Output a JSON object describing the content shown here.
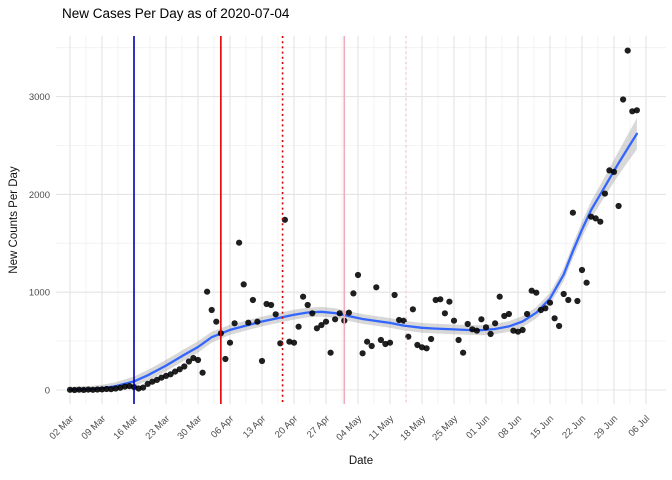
{
  "chart_data": {
    "type": "scatter",
    "title": "New Cases Per Day as of 2020-07-04",
    "xlabel": "Date",
    "ylabel": "New Counts Per Day",
    "x_tick_labels": [
      "02 Mar",
      "09 Mar",
      "16 Mar",
      "23 Mar",
      "30 Mar",
      "06 Apr",
      "13 Apr",
      "20 Apr",
      "27 Apr",
      "04 May",
      "11 May",
      "18 May",
      "25 May",
      "01 Jun",
      "08 Jun",
      "15 Jun",
      "22 Jun",
      "29 Jun",
      "06 Jul"
    ],
    "y_tick_labels": [
      "0",
      "1000",
      "2000",
      "3000"
    ],
    "y_ticks": [
      0,
      1000,
      2000,
      3000
    ],
    "y_minor_ticks": [
      500,
      1500,
      2500,
      3500
    ],
    "ylim": [
      0,
      3620
    ],
    "grid": "on",
    "legend": "none",
    "start_date": "2020-03-02",
    "end_date": "2020-07-04",
    "points": {
      "start_date": "2020-03-02",
      "values": [
        2,
        0,
        3,
        1,
        4,
        2,
        5,
        6,
        10,
        8,
        15,
        22,
        35,
        40,
        30,
        15,
        25,
        62,
        85,
        103,
        126,
        144,
        161,
        188,
        212,
        240,
        291,
        326,
        307,
        177,
        1005,
        818,
        698,
        580,
        317,
        484,
        682,
        1506,
        1080,
        688,
        920,
        698,
        297,
        879,
        869,
        774,
        477,
        1740,
        494,
        484,
        647,
        954,
        869,
        784,
        631,
        664,
        698,
        381,
        723,
        784,
        709,
        790,
        988,
        1176,
        375,
        494,
        450,
        1050,
        511,
        470,
        484,
        971,
        716,
        709,
        545,
        825,
        460,
        437,
        426,
        521,
        920,
        927,
        784,
        903,
        709,
        511,
        381,
        675,
        621,
        606,
        723,
        641,
        573,
        682,
        954,
        757,
        777,
        606,
        596,
        613,
        777,
        1015,
        995,
        818,
        835,
        893,
        733,
        654,
        982,
        920,
        1813,
        910,
        1227,
        1097,
        1772,
        1755,
        1721,
        2008,
        2245,
        2230,
        1881,
        2970,
        3470,
        2850,
        2860
      ]
    },
    "smooth": {
      "comment_type": "loess smooth with confidence ribbon, entries are [day_index, value, half_band]",
      "knots": [
        [
          0,
          3,
          30
        ],
        [
          4,
          8,
          32
        ],
        [
          7,
          18,
          35
        ],
        [
          10,
          40,
          40
        ],
        [
          14,
          88,
          50
        ],
        [
          17,
          150,
          55
        ],
        [
          21,
          250,
          58
        ],
        [
          25,
          360,
          58
        ],
        [
          28,
          440,
          58
        ],
        [
          31,
          540,
          55
        ],
        [
          35,
          615,
          52
        ],
        [
          39,
          665,
          50
        ],
        [
          42,
          700,
          50
        ],
        [
          46,
          740,
          50
        ],
        [
          49,
          770,
          50
        ],
        [
          52,
          792,
          50
        ],
        [
          55,
          800,
          50
        ],
        [
          58,
          786,
          50
        ],
        [
          61,
          756,
          50
        ],
        [
          64,
          726,
          50
        ],
        [
          67,
          706,
          50
        ],
        [
          70,
          686,
          50
        ],
        [
          73,
          658,
          50
        ],
        [
          77,
          636,
          50
        ],
        [
          80,
          628,
          50
        ],
        [
          84,
          620,
          50
        ],
        [
          87,
          614,
          50
        ],
        [
          90,
          612,
          52
        ],
        [
          93,
          624,
          52
        ],
        [
          96,
          650,
          54
        ],
        [
          99,
          700,
          56
        ],
        [
          102,
          790,
          58
        ],
        [
          105,
          935,
          60
        ],
        [
          108,
          1180,
          66
        ],
        [
          110,
          1420,
          72
        ],
        [
          112,
          1640,
          80
        ],
        [
          114,
          1840,
          88
        ],
        [
          116,
          2000,
          96
        ],
        [
          118,
          2160,
          108
        ],
        [
          120,
          2320,
          122
        ],
        [
          122,
          2470,
          140
        ],
        [
          124,
          2620,
          160
        ]
      ]
    },
    "vlines": [
      {
        "date": "2020-03-16",
        "day": 14,
        "color": "#0000B4",
        "style": "solid"
      },
      {
        "date": "2020-04-04",
        "day": 33,
        "color": "#DE0000",
        "style": "solid"
      },
      {
        "date": "2020-04-17",
        "day": 46.5,
        "color": "#D40000",
        "style": "dotted"
      },
      {
        "date": "2020-05-01",
        "day": 60,
        "color": "#F2ABBC",
        "style": "solid"
      },
      {
        "date": "2020-05-14",
        "day": 73.5,
        "color": "#F6CFD9",
        "style": "dotted"
      }
    ],
    "colors": {
      "point": "#000000",
      "smooth_line": "#3366FF",
      "ribbon": "#7F7F7F",
      "ribbon_alpha": 0.3,
      "grid_major": "#E4E4E4",
      "grid_minor": "#F0F0F0",
      "tick_label": "#4d4d4d",
      "background": "#FFFFFF"
    }
  }
}
